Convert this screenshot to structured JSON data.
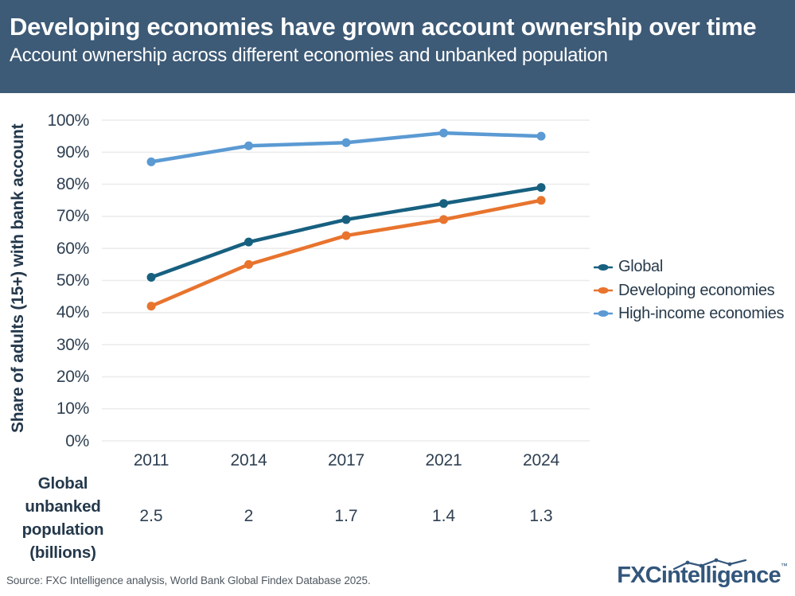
{
  "header": {
    "title": "Developing economies have grown account ownership over time",
    "subtitle": "Account ownership across different economies and unbanked population"
  },
  "chart_data": {
    "type": "line",
    "categories": [
      "2011",
      "2014",
      "2017",
      "2021",
      "2024"
    ],
    "series": [
      {
        "name": "Global",
        "color": "#176080",
        "values": [
          51,
          62,
          69,
          74,
          79
        ]
      },
      {
        "name": "Developing economies",
        "color": "#e8742e",
        "values": [
          42,
          55,
          64,
          69,
          75
        ]
      },
      {
        "name": "High-income economies",
        "color": "#5b9ad3",
        "values": [
          87,
          92,
          93,
          96,
          95
        ]
      }
    ],
    "ylabel": "Share of adults (15+) with bank account",
    "xlabel": "",
    "ylim": [
      0,
      100
    ],
    "ytick_labels": [
      "0%",
      "10%",
      "20%",
      "30%",
      "40%",
      "50%",
      "60%",
      "70%",
      "80%",
      "90%",
      "100%"
    ],
    "grid": true,
    "grid_color": "#ececec",
    "legend_position": "right"
  },
  "unbanked": {
    "row_label": "Global\nunbanked\npopulation\n(billions)",
    "values": [
      "2.5",
      "2",
      "1.7",
      "1.4",
      "1.3"
    ]
  },
  "footer": {
    "source": "Source: FXC Intelligence analysis, World Bank Global Findex Database 2025.",
    "logo": {
      "bold": "FXC",
      "rest": "intelligence",
      "tm": "™",
      "color": "#33567b"
    }
  },
  "colors": {
    "header_bg": "#3d5a76",
    "axis_text": "#2f4052",
    "label_text": "#24384b",
    "legend_text": "#273a4b",
    "source_text": "#4e575f"
  }
}
